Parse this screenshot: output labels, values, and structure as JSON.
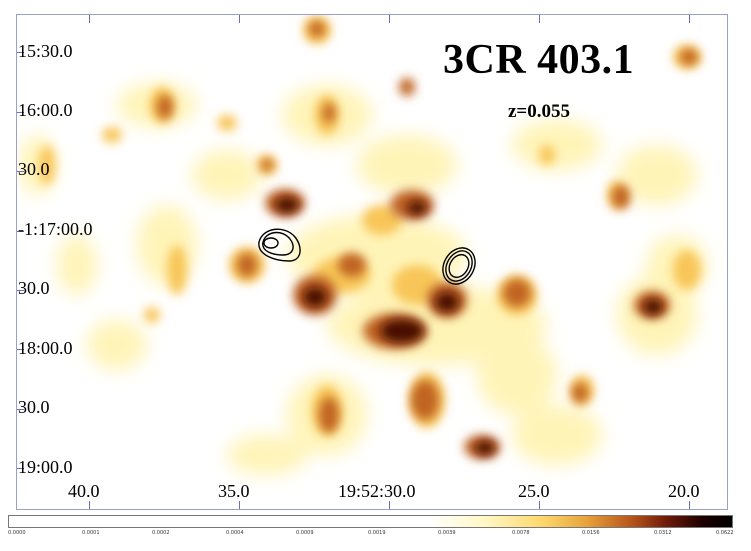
{
  "image": {
    "title": "3CR 403.1",
    "redshift": "z=0.055",
    "y_axis_labels": [
      "15:30.0",
      "16:00.0",
      "30.0",
      "-1:17:00.0",
      "30.0",
      "18:00.0",
      "30.0",
      "19:00.0"
    ],
    "x_axis_labels": [
      "40.0",
      "35.0",
      "19:52:30.0",
      "25.0",
      "20.0"
    ],
    "colorbar_labels": [
      "0.0000",
      "0.0001",
      "0.0002",
      "0.0004",
      "0.0009",
      "0.0019",
      "0.0039",
      "0.0078",
      "0.0156",
      "0.0312",
      "0.0622"
    ],
    "colormap": [
      "#ffffff",
      "#fff7c4",
      "#fdd66a",
      "#e7a13a",
      "#b8561a",
      "#6e1a0a",
      "#000000"
    ],
    "contour_color": "#000000"
  }
}
